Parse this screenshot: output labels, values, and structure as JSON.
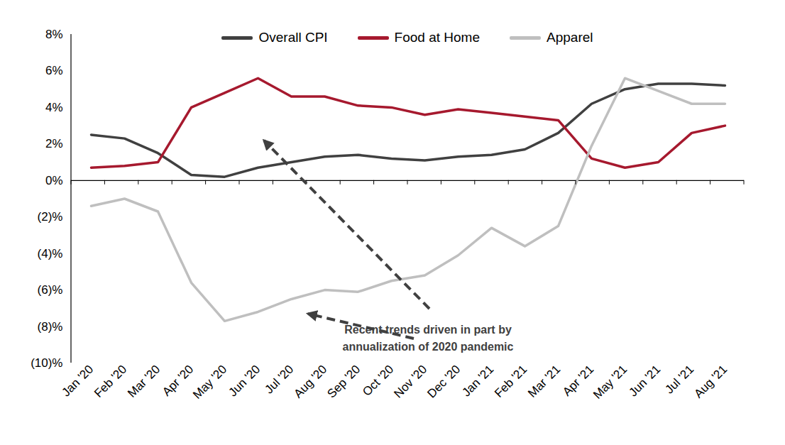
{
  "chart_data": {
    "type": "line",
    "categories": [
      "Jan '20",
      "Feb '20",
      "Mar '20",
      "Apr '20",
      "May '20",
      "Jun '20",
      "Jul '20",
      "Aug '20",
      "Sep '20",
      "Oct '20",
      "Nov '20",
      "Dec '20",
      "Jan '21",
      "Feb '21",
      "Mar '21",
      "Apr '21",
      "May '21",
      "Jun '21",
      "Jul '21",
      "Aug '21"
    ],
    "series": [
      {
        "name": "Overall CPI",
        "color": "#404040",
        "values": [
          2.5,
          2.3,
          1.5,
          0.3,
          0.2,
          0.7,
          1.0,
          1.3,
          1.4,
          1.2,
          1.1,
          1.3,
          1.4,
          1.7,
          2.6,
          4.2,
          5.0,
          5.3,
          5.3,
          5.2
        ]
      },
      {
        "name": "Food at Home",
        "color": "#A6192E",
        "values": [
          0.7,
          0.8,
          1.0,
          4.0,
          4.8,
          5.6,
          4.6,
          4.6,
          4.1,
          4.0,
          3.6,
          3.9,
          3.7,
          3.5,
          3.3,
          1.2,
          0.7,
          1.0,
          2.6,
          3.0
        ]
      },
      {
        "name": "Apparel",
        "color": "#BFBFBF",
        "values": [
          -1.4,
          -1.0,
          -1.7,
          -5.6,
          -7.7,
          -7.2,
          -6.5,
          -6.0,
          -6.1,
          -5.5,
          -5.2,
          -4.1,
          -2.6,
          -3.6,
          -2.5,
          1.9,
          5.6,
          4.9,
          4.2,
          4.2
        ]
      }
    ],
    "ylim": [
      -10,
      8
    ],
    "yticks": [
      {
        "value": -10,
        "label": "(10)%"
      },
      {
        "value": -8,
        "label": "(8)%"
      },
      {
        "value": -6,
        "label": "(6)%"
      },
      {
        "value": -4,
        "label": "(4)%"
      },
      {
        "value": -2,
        "label": "(2)%"
      },
      {
        "value": 0,
        "label": "0%"
      },
      {
        "value": 2,
        "label": "2%"
      },
      {
        "value": 4,
        "label": "4%"
      },
      {
        "value": 6,
        "label": "6%"
      },
      {
        "value": 8,
        "label": "8%"
      }
    ],
    "annotation": "Recent trends driven in part by\nannualization of 2020 pandemic",
    "grid": false,
    "legend": "top"
  }
}
